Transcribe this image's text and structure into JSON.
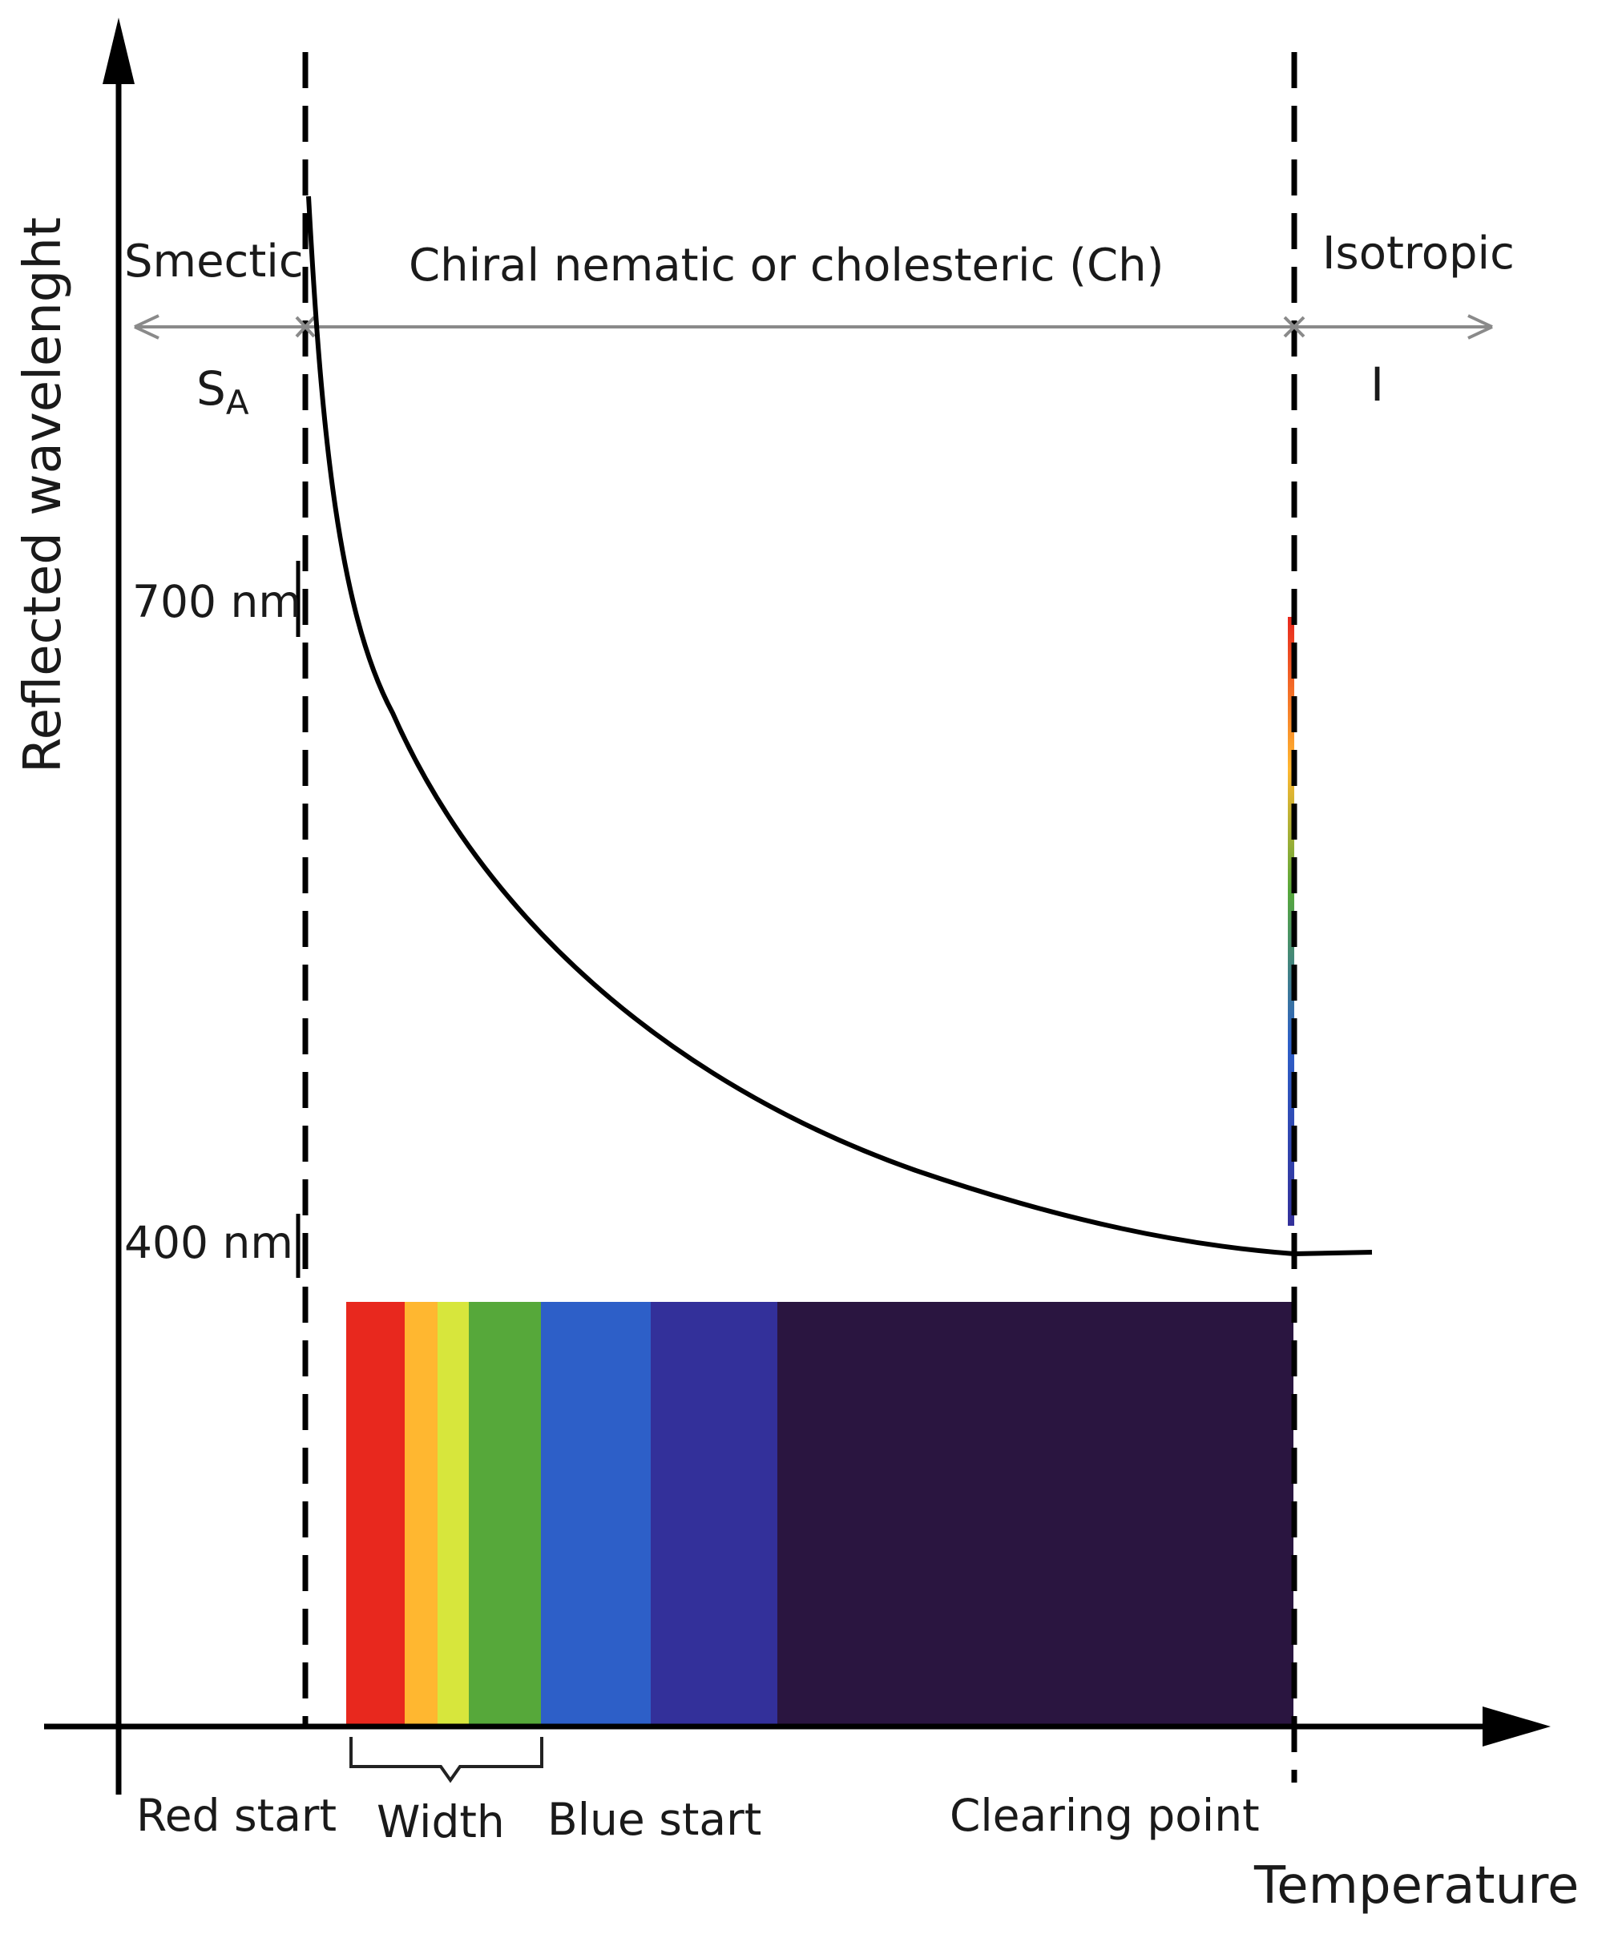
{
  "axes": {
    "y_title": "Reflected wavelenght",
    "x_title": "Temperature",
    "y_ticks": [
      {
        "label": "700 nm",
        "value": 700
      },
      {
        "label": "400 nm",
        "value": 400
      }
    ]
  },
  "phases": {
    "smectic": "Smectic",
    "smectic_symbol": "S",
    "smectic_subscript": "A",
    "cholesteric": "Chiral nematic or cholesteric (Ch)",
    "isotropic": "Isotropic",
    "isotropic_symbol": "I"
  },
  "x_markers": {
    "red_start": "Red start",
    "width": "Width",
    "blue_start": "Blue start",
    "clearing_point": "Clearing point"
  },
  "colors": {
    "axis": "#000000",
    "curve": "#000000",
    "phase_arrow": "#8a8a8a",
    "spectrum": [
      "#e8281e",
      "#f5402a",
      "#ffb730",
      "#d7e63c",
      "#56a83a",
      "#2d5fc8",
      "#33309a",
      "#2a1540"
    ]
  }
}
